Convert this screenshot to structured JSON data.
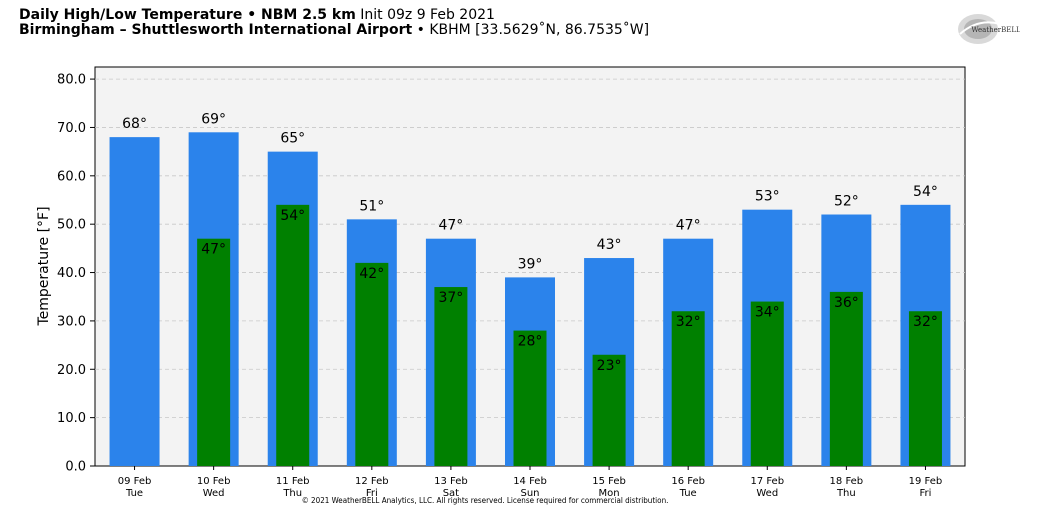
{
  "header": {
    "title_bold": "Daily High/Low Temperature • NBM 2.5 km",
    "title_init": "Init 09z 9 Feb 2021",
    "location_bold": "Birmingham – Shuttlesworth International Airport",
    "location_detail": "• KBHM [33.5629˚N, 86.7535˚W]"
  },
  "logo": {
    "icon": "weatherbell-logo",
    "text": "WeatherBELL"
  },
  "copyright": "© 2021 WeatherBELL Analytics, LLC. All rights reserved. License required for commercial distribution.",
  "colors": {
    "high": "#2b83eb",
    "low": "#008000",
    "plot_bg": "#f3f3f3"
  },
  "chart_data": {
    "type": "bar",
    "title": "Daily High/Low Temperature • NBM 2.5 km",
    "xlabel": "",
    "ylabel": "Temperature [°F]",
    "ylim": [
      0,
      82.5
    ],
    "yticks": [
      "0.0",
      "10.0",
      "20.0",
      "30.0",
      "40.0",
      "50.0",
      "60.0",
      "70.0",
      "80.0"
    ],
    "grid": true,
    "categories": [
      "09 Feb",
      "10 Feb",
      "11 Feb",
      "12 Feb",
      "13 Feb",
      "14 Feb",
      "15 Feb",
      "16 Feb",
      "17 Feb",
      "18 Feb",
      "19 Feb"
    ],
    "weekdays": [
      "Tue",
      "Wed",
      "Thu",
      "Fri",
      "Sat",
      "Sun",
      "Mon",
      "Tue",
      "Wed",
      "Thu",
      "Fri"
    ],
    "series": [
      {
        "values": [
          68,
          69,
          65,
          51,
          47,
          39,
          43,
          47,
          53,
          52,
          54
        ],
        "labels": [
          "68°",
          "69°",
          "65°",
          "51°",
          "47°",
          "39°",
          "43°",
          "47°",
          "53°",
          "52°",
          "54°"
        ]
      },
      {
        "values": [
          null,
          47,
          54,
          42,
          37,
          28,
          23,
          32,
          34,
          36,
          32
        ],
        "labels": [
          "",
          "47°",
          "54°",
          "42°",
          "37°",
          "28°",
          "23°",
          "32°",
          "34°",
          "36°",
          "32°"
        ]
      }
    ]
  }
}
